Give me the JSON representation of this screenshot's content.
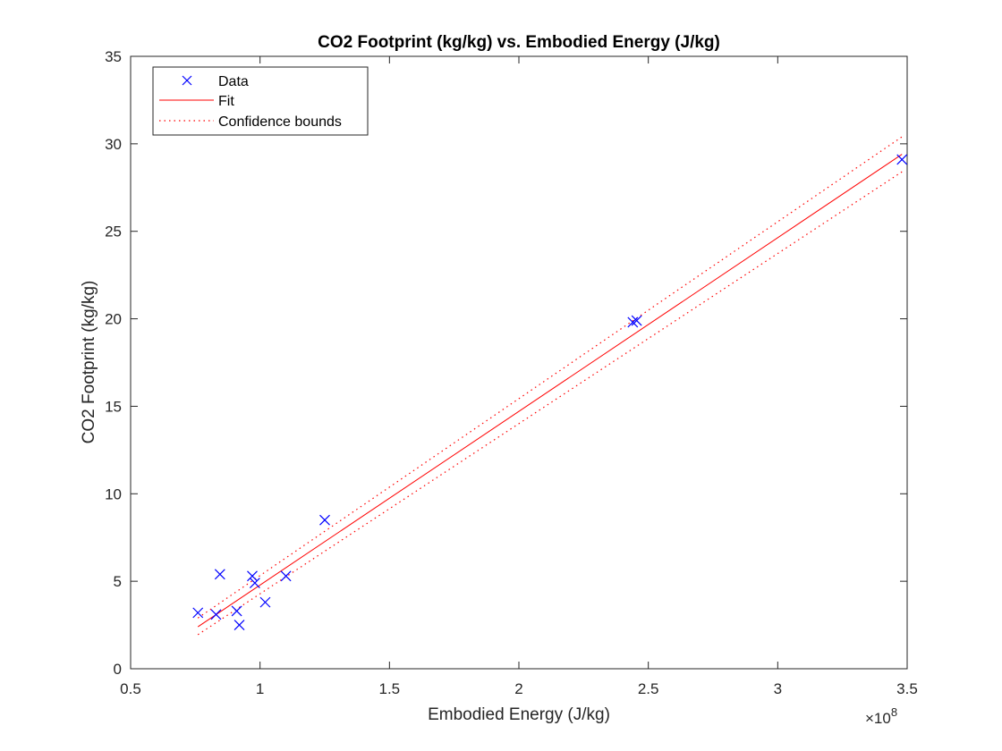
{
  "chart_data": {
    "type": "scatter",
    "title": "CO2 Footprint (kg/kg) vs. Embodied Energy (J/kg)",
    "xlabel": "Embodied Energy (J/kg)",
    "ylabel": "CO2 Footprint (kg/kg)",
    "x_exponent_label": "×10",
    "x_exponent_power": "8",
    "xlim": [
      0.5,
      3.5
    ],
    "ylim": [
      0,
      35
    ],
    "xticks": [
      0.5,
      1,
      1.5,
      2,
      2.5,
      3,
      3.5
    ],
    "xtick_labels": [
      "0.5",
      "1",
      "1.5",
      "2",
      "2.5",
      "3",
      "3.5"
    ],
    "yticks": [
      0,
      5,
      10,
      15,
      20,
      25,
      30,
      35
    ],
    "ytick_labels": [
      "0",
      "5",
      "10",
      "15",
      "20",
      "25",
      "30",
      "35"
    ],
    "grid": false,
    "legend_position": "top-left",
    "series": [
      {
        "name": "Data",
        "style": "markers-x",
        "color": "#0000ff",
        "x": [
          0.76,
          0.83,
          0.845,
          0.91,
          0.92,
          0.97,
          0.98,
          1.02,
          1.1,
          1.25,
          2.44,
          2.455,
          3.48
        ],
        "y": [
          3.2,
          3.1,
          5.4,
          3.3,
          2.5,
          5.3,
          4.9,
          3.8,
          5.3,
          8.5,
          19.8,
          19.9,
          29.1
        ]
      },
      {
        "name": "Fit",
        "style": "solid",
        "color": "#ff0000",
        "x": [
          0.76,
          3.48
        ],
        "y": [
          2.4,
          29.4
        ]
      },
      {
        "name": "Confidence bounds",
        "style": "dotted",
        "color": "#ff0000",
        "upper": {
          "x": [
            0.76,
            3.48
          ],
          "y": [
            2.9,
            30.4
          ]
        },
        "lower": {
          "x": [
            0.76,
            3.48
          ],
          "y": [
            1.95,
            28.4
          ]
        }
      }
    ]
  }
}
